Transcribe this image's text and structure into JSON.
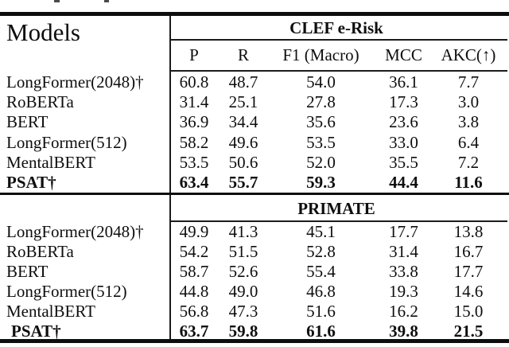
{
  "page": {
    "background": "#ffffff",
    "text_color": "#0e0e0e",
    "rule_color": "#0d0d0d"
  },
  "table": {
    "models_header": "Models",
    "columns": [
      "P",
      "R",
      "F1 (Macro)",
      "MCC",
      "AKC(↑)"
    ],
    "sections": [
      {
        "title": "CLEF e-Risk",
        "rows": [
          {
            "model": "LongFormer(2048)†",
            "bold": false,
            "values": [
              "60.8",
              "48.7",
              "54.0",
              "36.1",
              "7.7"
            ]
          },
          {
            "model": "RoBERTa",
            "bold": false,
            "values": [
              "31.4",
              "25.1",
              "27.8",
              "17.3",
              "3.0"
            ]
          },
          {
            "model": "BERT",
            "bold": false,
            "values": [
              "36.9",
              "34.4",
              "35.6",
              "23.6",
              "3.8"
            ]
          },
          {
            "model": "LongFormer(512)",
            "bold": false,
            "values": [
              "58.2",
              "49.6",
              "53.5",
              "33.0",
              "6.4"
            ]
          },
          {
            "model": "MentalBERT",
            "bold": false,
            "values": [
              "53.5",
              "50.6",
              "52.0",
              "35.5",
              "7.2"
            ]
          },
          {
            "model": "PSAT†",
            "bold": true,
            "values": [
              "63.4",
              "55.7",
              "59.3",
              "44.4",
              "11.6"
            ]
          }
        ]
      },
      {
        "title": "PRIMATE",
        "rows": [
          {
            "model": "LongFormer(2048)†",
            "bold": false,
            "values": [
              "49.9",
              "41.3",
              "45.1",
              "17.7",
              "13.8"
            ]
          },
          {
            "model": "RoBERTa",
            "bold": false,
            "values": [
              "54.2",
              "51.5",
              "52.8",
              "31.4",
              "16.7"
            ]
          },
          {
            "model": "BERT",
            "bold": false,
            "values": [
              "58.7",
              "52.6",
              "55.4",
              "33.8",
              "17.7"
            ]
          },
          {
            "model": "LongFormer(512)",
            "bold": false,
            "values": [
              "44.8",
              "49.0",
              "46.8",
              "19.3",
              "14.6"
            ]
          },
          {
            "model": "MentalBERT",
            "bold": false,
            "values": [
              "56.8",
              "47.3",
              "51.6",
              "16.2",
              "15.0"
            ]
          },
          {
            "model": "PSAT†",
            "bold": true,
            "values": [
              "63.7",
              "59.8",
              "61.6",
              "39.8",
              "21.5"
            ]
          }
        ]
      }
    ]
  }
}
